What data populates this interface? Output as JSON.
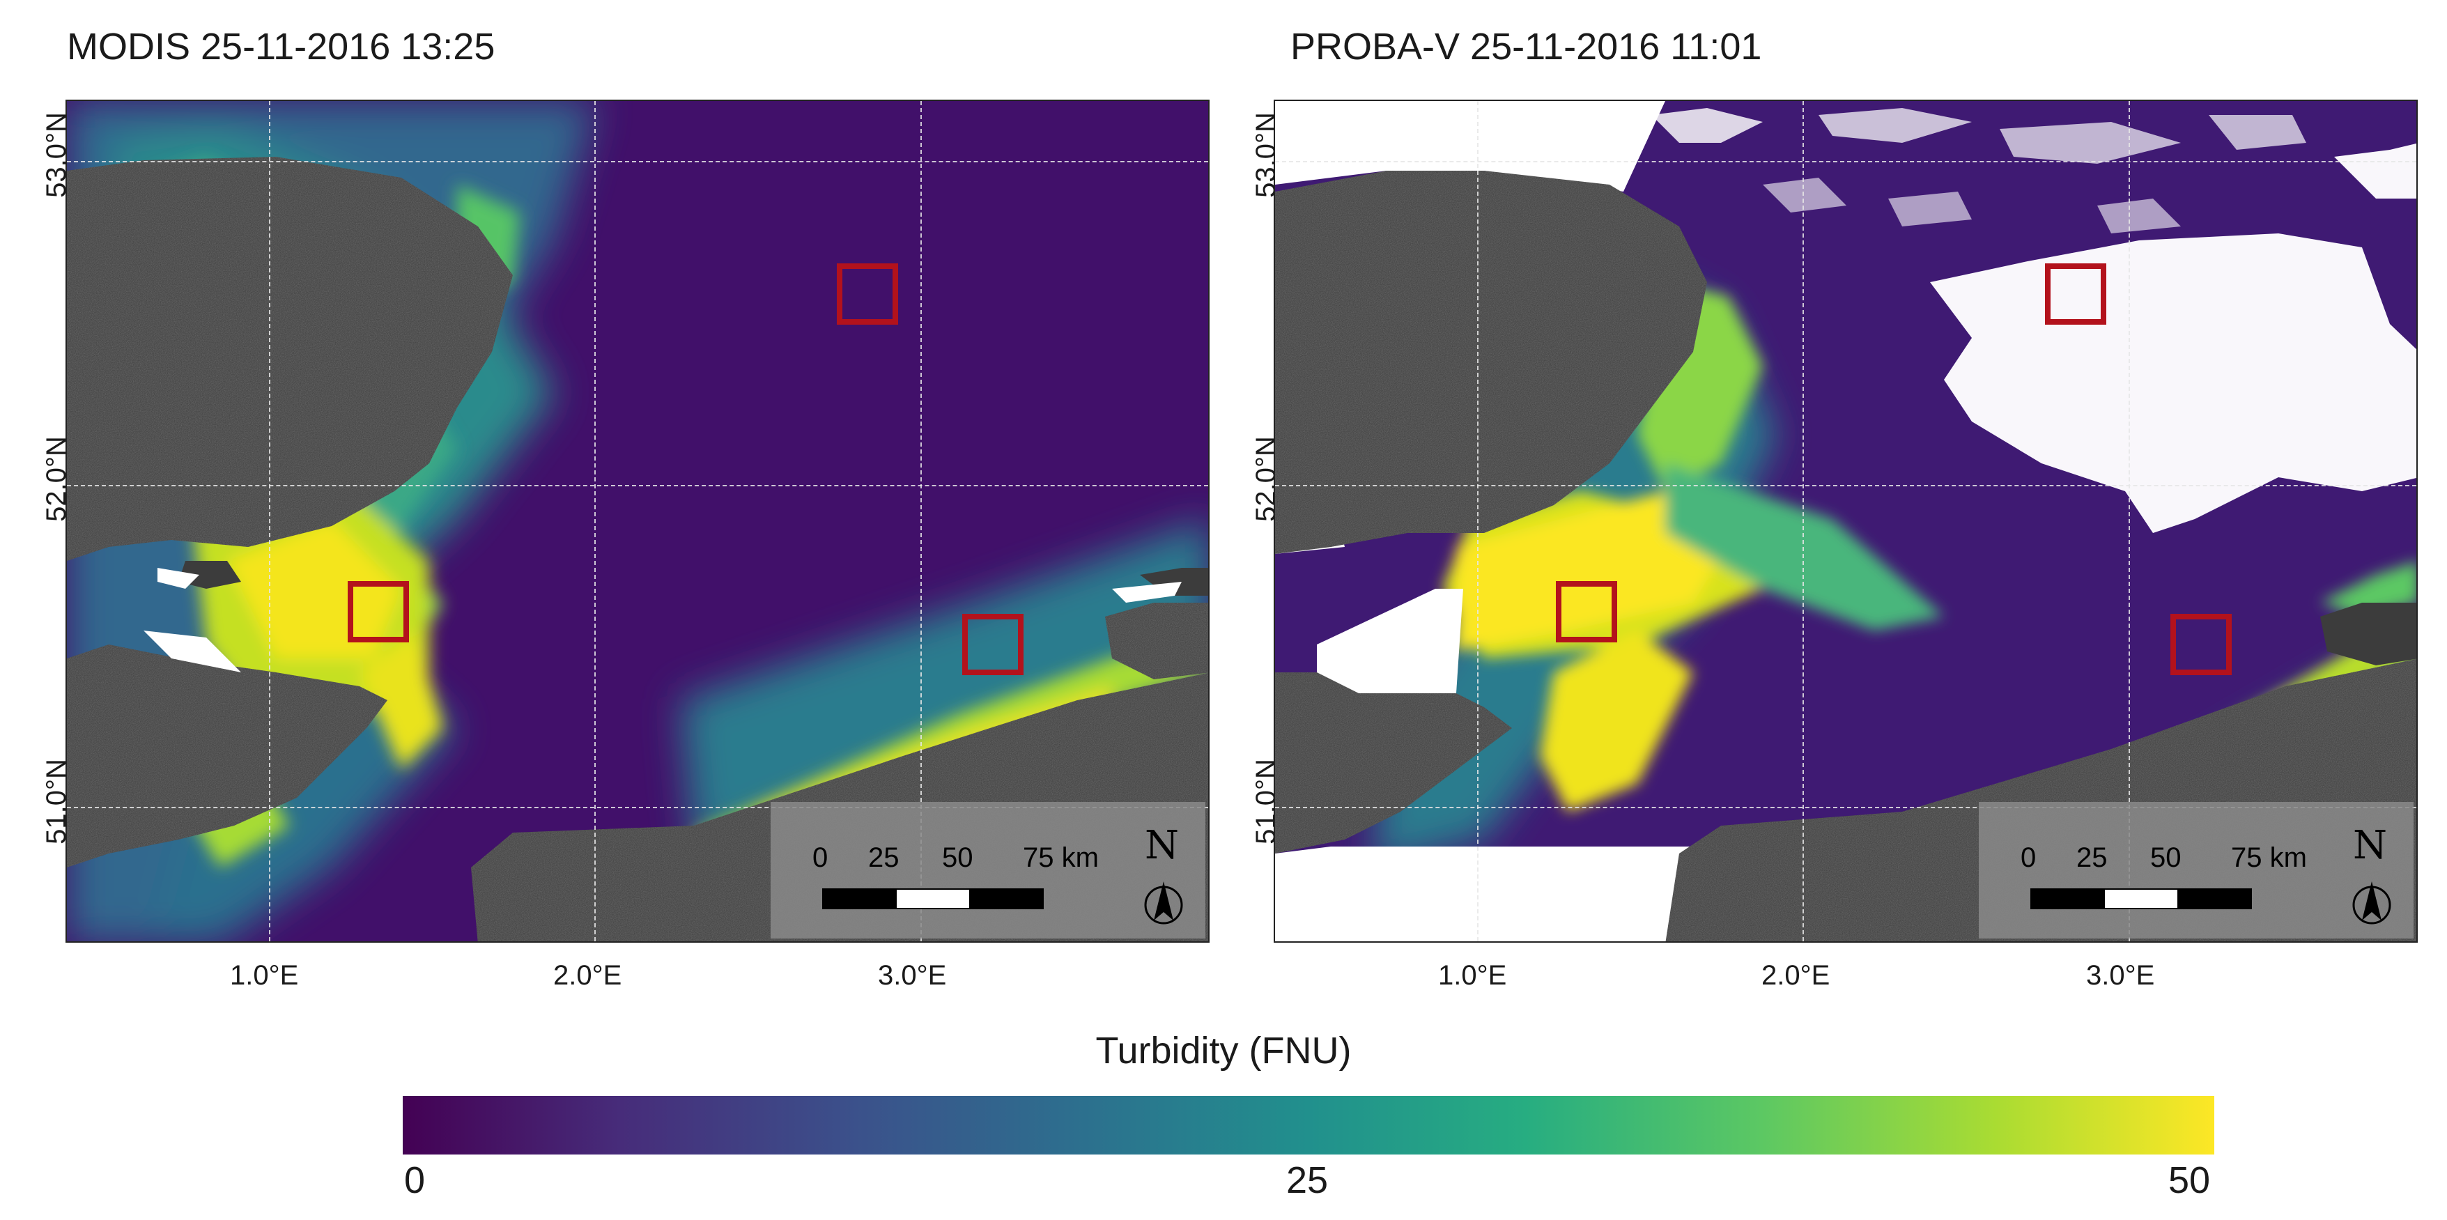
{
  "panels": [
    {
      "title": "MODIS 25-11-2016 13:25",
      "lat_labels": [
        "53.0°N",
        "52.0°N",
        "51.0°N"
      ],
      "lon_labels": [
        "1.0°E",
        "2.0°E",
        "3.0°E"
      ],
      "scale": {
        "labels": [
          "0",
          "25",
          "50",
          "75 km"
        ],
        "north": "N"
      },
      "roi_count": 3,
      "cloud_mask": false
    },
    {
      "title": "PROBA-V 25-11-2016 11:01",
      "lat_labels": [
        "53.0°N",
        "52.0°N",
        "51.0°N"
      ],
      "lon_labels": [
        "1.0°E",
        "2.0°E",
        "3.0°E"
      ],
      "scale": {
        "labels": [
          "0",
          "25",
          "50",
          "75 km"
        ],
        "north": "N"
      },
      "roi_count": 3,
      "cloud_mask": true
    }
  ],
  "colorbar": {
    "title": "Turbidity (FNU)",
    "ticks": [
      "0",
      "25",
      "50"
    ],
    "range": [
      0,
      50
    ],
    "colormap": "viridis",
    "colors": [
      "#440154",
      "#472c7a",
      "#3b518b",
      "#2c718e",
      "#21908d",
      "#27ad81",
      "#5cc863",
      "#aadc32",
      "#fde725"
    ]
  },
  "colors": {
    "roi": "#b3121c",
    "land": "#3c3c3c",
    "no_data": "#ffffff"
  }
}
